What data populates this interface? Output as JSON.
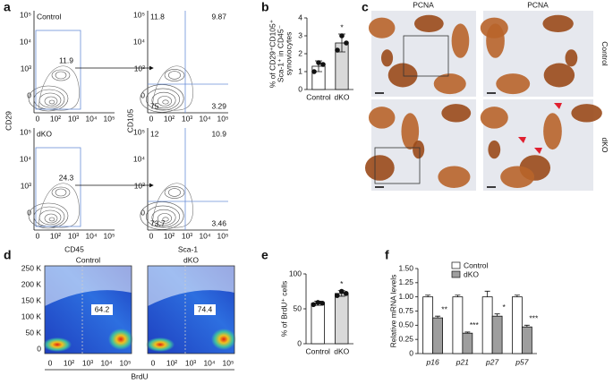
{
  "figure": {
    "panel_a": {
      "label": "a",
      "y_label_left": "CD29",
      "y_label_right": "CD105",
      "x_label_left": "CD45",
      "x_label_right": "Sca-1",
      "y_ticks": [
        "10⁵",
        "10⁴",
        "10³",
        "0"
      ],
      "x_ticks": [
        "0",
        "10²",
        "10³",
        "10⁴",
        "10⁵"
      ],
      "rows": [
        {
          "group": "Control",
          "gate": "11.9",
          "quadrants": {
            "upper_left": "11.8",
            "upper_right": "9.87",
            "lower_left": "75",
            "lower_right": "3.29"
          }
        },
        {
          "group": "dKO",
          "gate": "24.3",
          "quadrants": {
            "upper_left": "12",
            "upper_right": "10.9",
            "lower_left": "73.7",
            "lower_right": "3.46"
          }
        }
      ]
    },
    "panel_c": {
      "label": "c",
      "column_titles": [
        "PCNA",
        "PCNA"
      ],
      "row_labels": [
        "Control",
        "dKO"
      ]
    },
    "panel_d": {
      "label": "d",
      "plots": [
        {
          "group": "Control",
          "gate": "64.2"
        },
        {
          "group": "dKO",
          "gate": "74.4"
        }
      ],
      "y_ticks": [
        "250 K",
        "200 K",
        "150 K",
        "100 K",
        "50 K",
        "0"
      ],
      "x_ticks": [
        "0",
        "10²",
        "10³",
        "10⁴",
        "10⁵"
      ],
      "x_label": "BrdU"
    }
  },
  "chart_data": [
    {
      "type": "bar",
      "panel_label": "b",
      "y_label": [
        "% of CD29⁺CD105⁺",
        "Sca-1⁺ in CD45⁻",
        "synoviocytes"
      ],
      "categories": [
        "Control",
        "dKO"
      ],
      "values": [
        1.3,
        2.6
      ],
      "errors": [
        0.3,
        0.5
      ],
      "colors": [
        "#ffffff",
        "#d9d9d9"
      ],
      "points": [
        [
          1.0,
          1.5,
          1.4
        ],
        [
          2.2,
          3.0,
          2.6
        ]
      ],
      "significance": [
        null,
        "*"
      ],
      "ylim": [
        0,
        4
      ],
      "yticks": [
        0,
        1,
        2,
        3,
        4
      ]
    },
    {
      "type": "bar",
      "panel_label": "e",
      "y_label": [
        "% of BrdU⁺ cells"
      ],
      "categories": [
        "Control",
        "dKO"
      ],
      "values": [
        58,
        72
      ],
      "errors": [
        3,
        4
      ],
      "colors": [
        "#ffffff",
        "#d9d9d9"
      ],
      "points": [
        [
          56,
          59,
          58
        ],
        [
          69,
          75,
          72
        ]
      ],
      "significance": [
        null,
        "*"
      ],
      "ylim": [
        0,
        100
      ],
      "yticks": [
        0,
        50,
        100
      ]
    },
    {
      "type": "grouped_bar",
      "panel_label": "f",
      "y_label": [
        "Relative mRNA levels"
      ],
      "categories": [
        "p16",
        "p21",
        "p27",
        "p57"
      ],
      "series": [
        {
          "name": "Control",
          "color": "#ffffff",
          "values": [
            1.0,
            1.0,
            1.0,
            1.0
          ],
          "errors": [
            0.03,
            0.03,
            0.1,
            0.03
          ]
        },
        {
          "name": "dKO",
          "color": "#9e9e9e",
          "values": [
            0.63,
            0.36,
            0.66,
            0.47
          ],
          "errors": [
            0.03,
            0.02,
            0.04,
            0.03
          ]
        }
      ],
      "significance": [
        "**",
        "***",
        "*",
        "***"
      ],
      "ylim": [
        0,
        1.5
      ],
      "yticks": [
        0,
        0.25,
        {
          "value": 0.5,
          "label": "0.50"
        },
        0.75,
        {
          "value": 1,
          "label": "1.00"
        },
        1.25,
        {
          "value": 1.5,
          "label": "1.50"
        }
      ]
    }
  ]
}
